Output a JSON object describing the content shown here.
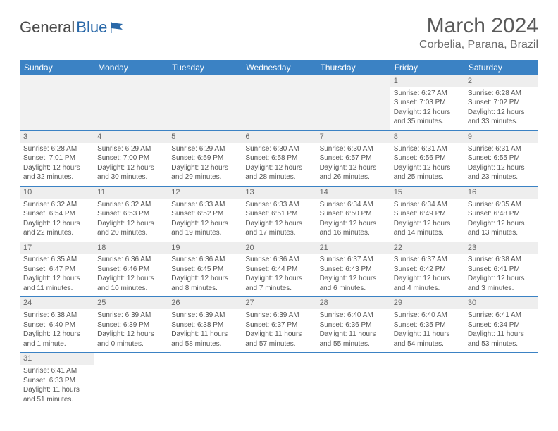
{
  "logo": {
    "word1": "General",
    "word2": "Blue"
  },
  "title": "March 2024",
  "location": "Corbelia, Parana, Brazil",
  "colors": {
    "header_bg": "#3b82c4",
    "header_fg": "#ffffff",
    "daynum_bg": "#eeeeee",
    "row_border": "#3b82c4",
    "logo_blue": "#2968a8"
  },
  "weekdays": [
    "Sunday",
    "Monday",
    "Tuesday",
    "Wednesday",
    "Thursday",
    "Friday",
    "Saturday"
  ],
  "weeks": [
    [
      null,
      null,
      null,
      null,
      null,
      {
        "n": "1",
        "sr": "Sunrise: 6:27 AM",
        "ss": "Sunset: 7:03 PM",
        "d1": "Daylight: 12 hours",
        "d2": "and 35 minutes."
      },
      {
        "n": "2",
        "sr": "Sunrise: 6:28 AM",
        "ss": "Sunset: 7:02 PM",
        "d1": "Daylight: 12 hours",
        "d2": "and 33 minutes."
      }
    ],
    [
      {
        "n": "3",
        "sr": "Sunrise: 6:28 AM",
        "ss": "Sunset: 7:01 PM",
        "d1": "Daylight: 12 hours",
        "d2": "and 32 minutes."
      },
      {
        "n": "4",
        "sr": "Sunrise: 6:29 AM",
        "ss": "Sunset: 7:00 PM",
        "d1": "Daylight: 12 hours",
        "d2": "and 30 minutes."
      },
      {
        "n": "5",
        "sr": "Sunrise: 6:29 AM",
        "ss": "Sunset: 6:59 PM",
        "d1": "Daylight: 12 hours",
        "d2": "and 29 minutes."
      },
      {
        "n": "6",
        "sr": "Sunrise: 6:30 AM",
        "ss": "Sunset: 6:58 PM",
        "d1": "Daylight: 12 hours",
        "d2": "and 28 minutes."
      },
      {
        "n": "7",
        "sr": "Sunrise: 6:30 AM",
        "ss": "Sunset: 6:57 PM",
        "d1": "Daylight: 12 hours",
        "d2": "and 26 minutes."
      },
      {
        "n": "8",
        "sr": "Sunrise: 6:31 AM",
        "ss": "Sunset: 6:56 PM",
        "d1": "Daylight: 12 hours",
        "d2": "and 25 minutes."
      },
      {
        "n": "9",
        "sr": "Sunrise: 6:31 AM",
        "ss": "Sunset: 6:55 PM",
        "d1": "Daylight: 12 hours",
        "d2": "and 23 minutes."
      }
    ],
    [
      {
        "n": "10",
        "sr": "Sunrise: 6:32 AM",
        "ss": "Sunset: 6:54 PM",
        "d1": "Daylight: 12 hours",
        "d2": "and 22 minutes."
      },
      {
        "n": "11",
        "sr": "Sunrise: 6:32 AM",
        "ss": "Sunset: 6:53 PM",
        "d1": "Daylight: 12 hours",
        "d2": "and 20 minutes."
      },
      {
        "n": "12",
        "sr": "Sunrise: 6:33 AM",
        "ss": "Sunset: 6:52 PM",
        "d1": "Daylight: 12 hours",
        "d2": "and 19 minutes."
      },
      {
        "n": "13",
        "sr": "Sunrise: 6:33 AM",
        "ss": "Sunset: 6:51 PM",
        "d1": "Daylight: 12 hours",
        "d2": "and 17 minutes."
      },
      {
        "n": "14",
        "sr": "Sunrise: 6:34 AM",
        "ss": "Sunset: 6:50 PM",
        "d1": "Daylight: 12 hours",
        "d2": "and 16 minutes."
      },
      {
        "n": "15",
        "sr": "Sunrise: 6:34 AM",
        "ss": "Sunset: 6:49 PM",
        "d1": "Daylight: 12 hours",
        "d2": "and 14 minutes."
      },
      {
        "n": "16",
        "sr": "Sunrise: 6:35 AM",
        "ss": "Sunset: 6:48 PM",
        "d1": "Daylight: 12 hours",
        "d2": "and 13 minutes."
      }
    ],
    [
      {
        "n": "17",
        "sr": "Sunrise: 6:35 AM",
        "ss": "Sunset: 6:47 PM",
        "d1": "Daylight: 12 hours",
        "d2": "and 11 minutes."
      },
      {
        "n": "18",
        "sr": "Sunrise: 6:36 AM",
        "ss": "Sunset: 6:46 PM",
        "d1": "Daylight: 12 hours",
        "d2": "and 10 minutes."
      },
      {
        "n": "19",
        "sr": "Sunrise: 6:36 AM",
        "ss": "Sunset: 6:45 PM",
        "d1": "Daylight: 12 hours",
        "d2": "and 8 minutes."
      },
      {
        "n": "20",
        "sr": "Sunrise: 6:36 AM",
        "ss": "Sunset: 6:44 PM",
        "d1": "Daylight: 12 hours",
        "d2": "and 7 minutes."
      },
      {
        "n": "21",
        "sr": "Sunrise: 6:37 AM",
        "ss": "Sunset: 6:43 PM",
        "d1": "Daylight: 12 hours",
        "d2": "and 6 minutes."
      },
      {
        "n": "22",
        "sr": "Sunrise: 6:37 AM",
        "ss": "Sunset: 6:42 PM",
        "d1": "Daylight: 12 hours",
        "d2": "and 4 minutes."
      },
      {
        "n": "23",
        "sr": "Sunrise: 6:38 AM",
        "ss": "Sunset: 6:41 PM",
        "d1": "Daylight: 12 hours",
        "d2": "and 3 minutes."
      }
    ],
    [
      {
        "n": "24",
        "sr": "Sunrise: 6:38 AM",
        "ss": "Sunset: 6:40 PM",
        "d1": "Daylight: 12 hours",
        "d2": "and 1 minute."
      },
      {
        "n": "25",
        "sr": "Sunrise: 6:39 AM",
        "ss": "Sunset: 6:39 PM",
        "d1": "Daylight: 12 hours",
        "d2": "and 0 minutes."
      },
      {
        "n": "26",
        "sr": "Sunrise: 6:39 AM",
        "ss": "Sunset: 6:38 PM",
        "d1": "Daylight: 11 hours",
        "d2": "and 58 minutes."
      },
      {
        "n": "27",
        "sr": "Sunrise: 6:39 AM",
        "ss": "Sunset: 6:37 PM",
        "d1": "Daylight: 11 hours",
        "d2": "and 57 minutes."
      },
      {
        "n": "28",
        "sr": "Sunrise: 6:40 AM",
        "ss": "Sunset: 6:36 PM",
        "d1": "Daylight: 11 hours",
        "d2": "and 55 minutes."
      },
      {
        "n": "29",
        "sr": "Sunrise: 6:40 AM",
        "ss": "Sunset: 6:35 PM",
        "d1": "Daylight: 11 hours",
        "d2": "and 54 minutes."
      },
      {
        "n": "30",
        "sr": "Sunrise: 6:41 AM",
        "ss": "Sunset: 6:34 PM",
        "d1": "Daylight: 11 hours",
        "d2": "and 53 minutes."
      }
    ],
    [
      {
        "n": "31",
        "sr": "Sunrise: 6:41 AM",
        "ss": "Sunset: 6:33 PM",
        "d1": "Daylight: 11 hours",
        "d2": "and 51 minutes."
      },
      null,
      null,
      null,
      null,
      null,
      null
    ]
  ]
}
